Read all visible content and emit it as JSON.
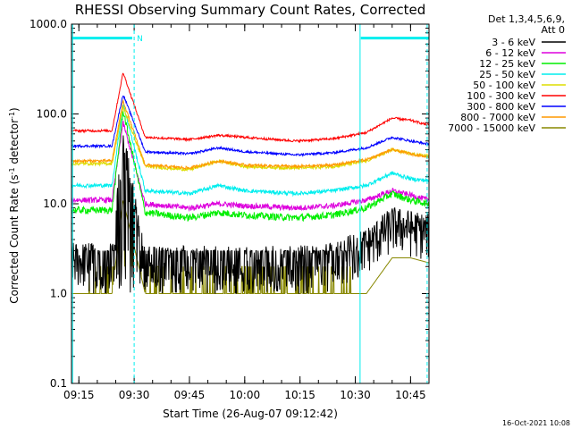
{
  "chart_data": {
    "type": "line",
    "title": "RHESSI Observing Summary Count Rates, Corrected",
    "xlabel": "Start Time (26-Aug-07 09:12:42)",
    "ylabel_parts": [
      "Corrected Count Rate (s",
      "-1",
      " detector",
      "-1",
      ")"
    ],
    "yscale": "log",
    "ylim": [
      0.1,
      1000
    ],
    "xlim_min": [
      553,
      650
    ],
    "x_ticks": [
      {
        "min": 555,
        "label": "09:15"
      },
      {
        "min": 570,
        "label": "09:30"
      },
      {
        "min": 585,
        "label": "09:45"
      },
      {
        "min": 600,
        "label": "10:00"
      },
      {
        "min": 615,
        "label": "10:15"
      },
      {
        "min": 630,
        "label": "10:30"
      },
      {
        "min": 645,
        "label": "10:45"
      }
    ],
    "y_ticks": [
      {
        "value": 0.1,
        "label": "0.1"
      },
      {
        "value": 1,
        "label": "1.0"
      },
      {
        "value": 10,
        "label": "10.0"
      },
      {
        "value": 100,
        "label": "100.0"
      },
      {
        "value": 1000,
        "label": "1000.0"
      }
    ],
    "legend_header": [
      "Det 1,3,4,5,6,9,",
      "Att 0"
    ],
    "legend_placement": "right",
    "x_anchor_min": [
      553,
      564,
      567,
      573,
      585,
      593,
      600,
      614,
      624,
      633,
      640,
      645,
      650
    ],
    "series": [
      {
        "name": "3 - 6 keV",
        "color": "#000000",
        "noise": 0.55,
        "values": [
          2.4,
          2.4,
          45,
          2.2,
          2.2,
          2.2,
          2.2,
          2.2,
          2.4,
          3.5,
          6.0,
          5.5,
          5.0
        ]
      },
      {
        "name": "6 - 12 keV",
        "color": "#dd00dd",
        "noise": 0.07,
        "values": [
          11,
          11,
          80,
          10,
          9,
          10,
          9.5,
          9,
          9.5,
          11,
          14,
          12.5,
          11
        ]
      },
      {
        "name": "12 - 25 keV",
        "color": "#00ee00",
        "noise": 0.09,
        "values": [
          8.5,
          8.5,
          110,
          8,
          7,
          8,
          7.5,
          7,
          7.5,
          9,
          13,
          11,
          10
        ]
      },
      {
        "name": "25 - 50 keV",
        "color": "#00eeee",
        "noise": 0.05,
        "values": [
          16,
          16,
          130,
          14,
          13,
          16,
          14,
          13,
          14,
          16,
          22,
          19,
          18
        ]
      },
      {
        "name": "50 - 100 keV",
        "color": "#dddd00",
        "noise": 0.04,
        "values": [
          28,
          28,
          120,
          26,
          24,
          30,
          26,
          25,
          26,
          30,
          40,
          36,
          34
        ]
      },
      {
        "name": "100 - 300 keV",
        "color": "#ff0000",
        "noise": 0.03,
        "values": [
          65,
          65,
          290,
          55,
          52,
          58,
          55,
          50,
          53,
          62,
          90,
          85,
          75
        ]
      },
      {
        "name": "300 - 800 keV",
        "color": "#0000ff",
        "noise": 0.03,
        "values": [
          44,
          44,
          165,
          38,
          36,
          42,
          38,
          35,
          37,
          42,
          55,
          50,
          46
        ]
      },
      {
        "name": "800 - 7000 keV",
        "color": "#ff9900",
        "noise": 0.035,
        "values": [
          30,
          30,
          140,
          27,
          25,
          30,
          27,
          26,
          27,
          31,
          40,
          36,
          33
        ]
      },
      {
        "name": "7000 - 15000 keV",
        "color": "#888800",
        "noise": 0.0,
        "values": [
          1.0,
          1.0,
          11,
          1.0,
          1.0,
          1.0,
          1.0,
          1.0,
          1.0,
          1.0,
          2.5,
          2.5,
          2.2
        ]
      }
    ],
    "bars": [
      {
        "color": "#00eeee",
        "x1_min": 553,
        "x2_min": 569.5,
        "value": 700
      },
      {
        "color": "#00eeee",
        "x1_min": 631.5,
        "x2_min": 650,
        "value": 700
      }
    ],
    "annotations": [
      {
        "text": "N",
        "x_min": 570,
        "value": 760,
        "color": "#00eeee"
      }
    ],
    "vlines": [
      {
        "x_min": 553.3,
        "style": "solid",
        "color": "#00eeee"
      },
      {
        "x_min": 570.0,
        "style": "dashed",
        "color": "#00eeee"
      },
      {
        "x_min": 631.3,
        "style": "solid",
        "color": "#00eeee"
      },
      {
        "x_min": 649.5,
        "style": "dashed",
        "color": "#00eeee"
      }
    ]
  },
  "footer": {
    "timestamp": "16-Oct-2021 10:08"
  }
}
